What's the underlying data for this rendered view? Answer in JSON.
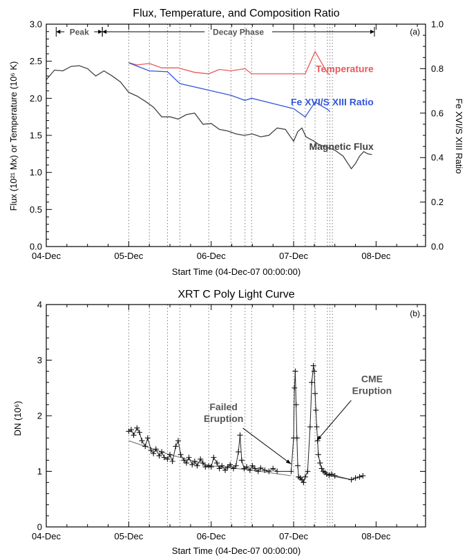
{
  "colors": {
    "temperature": "#e8585a",
    "ratio": "#3356d8",
    "flux": "#404040",
    "annotation": "#555555",
    "axis": "#000000"
  },
  "chart_data": [
    {
      "panel_label": "(a)",
      "type": "line",
      "title": "Flux, Temperature, and Composition Ratio",
      "xlabel": "Start Time (04-Dec-07 00:00:00)",
      "ylabel": "Flux (10²¹ Mx) or Temperature (10⁶ K)",
      "ylabel_right": "Fe XVI/S XIII Ratio",
      "x_unit": "days since 04-Dec-07 00:00",
      "xlim": [
        0,
        4.6
      ],
      "ylim": [
        0,
        3.0
      ],
      "ylim_right": [
        0,
        1.0
      ],
      "xticks": [
        {
          "value": 0,
          "label": "04-Dec"
        },
        {
          "value": 1,
          "label": "05-Dec"
        },
        {
          "value": 2,
          "label": "06-Dec"
        },
        {
          "value": 3,
          "label": "07-Dec"
        },
        {
          "value": 4,
          "label": "08-Dec"
        }
      ],
      "yticks": [
        0.0,
        0.5,
        1.0,
        1.5,
        2.0,
        2.5,
        3.0
      ],
      "yticks_right": [
        0.0,
        0.2,
        0.4,
        0.6,
        0.8,
        1.0
      ],
      "event_lines": [
        1.0,
        1.25,
        1.47,
        1.62,
        1.97,
        2.24,
        2.41,
        2.49,
        3.0,
        3.14,
        3.26,
        3.41,
        3.44,
        3.47
      ],
      "phases": [
        {
          "label": "Peak",
          "start": 0.12,
          "end": 0.68
        },
        {
          "label": "Decay Phase",
          "start": 0.68,
          "end": 3.98
        }
      ],
      "series": [
        {
          "name": "Temperature",
          "axis": "left",
          "color_key": "temperature",
          "x": [
            1.0,
            1.1,
            1.25,
            1.4,
            1.6,
            1.8,
            1.97,
            2.1,
            2.24,
            2.41,
            2.49,
            2.7,
            3.0,
            3.14,
            3.26,
            3.41,
            3.44
          ],
          "y": [
            2.48,
            2.45,
            2.47,
            2.41,
            2.41,
            2.35,
            2.33,
            2.39,
            2.37,
            2.4,
            2.33,
            2.33,
            2.33,
            2.33,
            2.63,
            2.34,
            2.32
          ]
        },
        {
          "name": "Fe XVI/S XIII Ratio",
          "axis": "right",
          "color_key": "ratio",
          "x": [
            1.0,
            1.25,
            1.47,
            1.62,
            1.97,
            2.24,
            2.41,
            2.49,
            3.0,
            3.14,
            3.26,
            3.41,
            3.44
          ],
          "y": [
            0.826,
            0.79,
            0.786,
            0.733,
            0.703,
            0.68,
            0.657,
            0.667,
            0.62,
            0.583,
            0.65,
            0.617,
            0.607
          ]
        },
        {
          "name": "Magnetic Flux",
          "axis": "left",
          "color_key": "flux",
          "x": [
            0.0,
            0.1,
            0.2,
            0.3,
            0.4,
            0.5,
            0.6,
            0.7,
            0.8,
            0.9,
            1.0,
            1.1,
            1.2,
            1.3,
            1.4,
            1.5,
            1.6,
            1.7,
            1.8,
            1.9,
            2.0,
            2.1,
            2.2,
            2.3,
            2.4,
            2.5,
            2.6,
            2.7,
            2.8,
            2.9,
            3.0,
            3.05,
            3.1,
            3.15,
            3.2,
            3.25,
            3.3,
            3.4,
            3.5,
            3.6,
            3.7,
            3.75,
            3.8,
            3.85,
            3.9,
            3.95
          ],
          "y": [
            2.25,
            2.38,
            2.37,
            2.43,
            2.44,
            2.4,
            2.3,
            2.37,
            2.3,
            2.22,
            2.08,
            2.03,
            1.96,
            1.88,
            1.75,
            1.75,
            1.72,
            1.78,
            1.8,
            1.65,
            1.66,
            1.58,
            1.56,
            1.52,
            1.5,
            1.52,
            1.48,
            1.5,
            1.6,
            1.58,
            1.42,
            1.55,
            1.6,
            1.48,
            1.45,
            1.42,
            1.38,
            1.34,
            1.3,
            1.22,
            1.05,
            1.12,
            1.22,
            1.28,
            1.25,
            1.24
          ]
        }
      ]
    },
    {
      "panel_label": "(b)",
      "type": "scatter",
      "title": "XRT C Poly Light Curve",
      "xlabel": "Start Time (04-Dec-07 00:00:00)",
      "ylabel": "DN (10⁶)",
      "x_unit": "days since 04-Dec-07 00:00",
      "xlim": [
        0,
        4.6
      ],
      "ylim": [
        0,
        4
      ],
      "xticks": [
        {
          "value": 0,
          "label": "04-Dec"
        },
        {
          "value": 1,
          "label": "05-Dec"
        },
        {
          "value": 2,
          "label": "06-Dec"
        },
        {
          "value": 3,
          "label": "07-Dec"
        },
        {
          "value": 4,
          "label": "08-Dec"
        }
      ],
      "yticks": [
        0,
        1,
        2,
        3,
        4
      ],
      "event_lines": [
        1.0,
        1.25,
        1.47,
        1.62,
        1.97,
        2.24,
        2.41,
        2.49,
        3.0,
        3.14,
        3.26,
        3.41,
        3.44,
        3.47
      ],
      "annotations": [
        {
          "text": "Failed Eruption",
          "anchor": [
            2.15,
            2.1
          ],
          "arrow_to": [
            2.97,
            1.13
          ]
        },
        {
          "text": "CME Eruption",
          "anchor": [
            3.95,
            2.6
          ],
          "arrow_to": [
            3.28,
            1.55
          ]
        }
      ],
      "series": [
        {
          "name": "XRT C Poly",
          "x": [
            1.0,
            1.03,
            1.06,
            1.1,
            1.13,
            1.16,
            1.2,
            1.23,
            1.27,
            1.3,
            1.33,
            1.37,
            1.4,
            1.43,
            1.47,
            1.5,
            1.53,
            1.57,
            1.6,
            1.63,
            1.67,
            1.7,
            1.73,
            1.77,
            1.8,
            1.83,
            1.87,
            1.9,
            1.93,
            1.97,
            2.0,
            2.03,
            2.07,
            2.1,
            2.13,
            2.17,
            2.2,
            2.23,
            2.27,
            2.3,
            2.33,
            2.35,
            2.37,
            2.4,
            2.43,
            2.47,
            2.5,
            2.53,
            2.57,
            2.6,
            2.65,
            2.7,
            2.75,
            2.8,
            2.97,
            3.0,
            3.01,
            3.02,
            3.03,
            3.04,
            3.05,
            3.06,
            3.08,
            3.1,
            3.12,
            3.14,
            3.17,
            3.2,
            3.22,
            3.24,
            3.25,
            3.26,
            3.27,
            3.28,
            3.29,
            3.3,
            3.32,
            3.34,
            3.36,
            3.38,
            3.4,
            3.43,
            3.46,
            3.5,
            3.7,
            3.75,
            3.8,
            3.84
          ],
          "y": [
            1.72,
            1.75,
            1.65,
            1.78,
            1.7,
            1.55,
            1.45,
            1.6,
            1.38,
            1.32,
            1.4,
            1.28,
            1.35,
            1.25,
            1.22,
            1.3,
            1.18,
            1.45,
            1.55,
            1.3,
            1.2,
            1.15,
            1.25,
            1.12,
            1.18,
            1.1,
            1.22,
            1.15,
            1.08,
            1.1,
            1.08,
            1.25,
            1.15,
            1.05,
            1.1,
            1.02,
            1.08,
            1.12,
            1.05,
            1.1,
            1.35,
            1.65,
            1.2,
            1.05,
            1.08,
            1.02,
            1.1,
            1.05,
            1.0,
            1.06,
            1.02,
            1.0,
            1.05,
            1.0,
            1.0,
            1.6,
            2.5,
            2.8,
            2.2,
            1.6,
            1.1,
            0.9,
            0.88,
            0.85,
            0.8,
            0.9,
            1.0,
            1.8,
            2.6,
            2.9,
            2.8,
            2.4,
            2.1,
            1.8,
            1.55,
            1.3,
            1.15,
            1.05,
            1.0,
            0.98,
            0.95,
            0.93,
            0.95,
            0.92,
            0.85,
            0.88,
            0.9,
            0.92
          ]
        }
      ]
    }
  ]
}
